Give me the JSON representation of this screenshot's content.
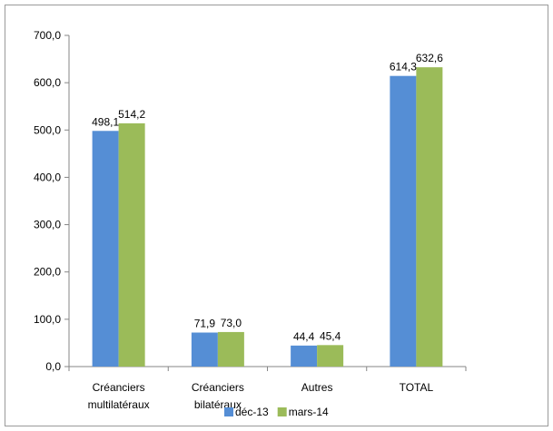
{
  "chart_data": {
    "type": "bar",
    "categories": [
      [
        "Créanciers",
        "multilatéraux"
      ],
      [
        "Créanciers",
        "bilatéraux"
      ],
      [
        "Autres"
      ],
      [
        "TOTAL"
      ]
    ],
    "series": [
      {
        "name": "déc-13",
        "color": "#558ED5",
        "values": [
          498.1,
          71.9,
          44.4,
          614.3
        ],
        "labels": [
          "498,1",
          "71,9",
          "44,4",
          "614,3"
        ]
      },
      {
        "name": "mars-14",
        "color": "#9BBB59",
        "values": [
          514.2,
          73.0,
          45.4,
          632.6
        ],
        "labels": [
          "514,2",
          "73,0",
          "45,4",
          "632,6"
        ]
      }
    ],
    "ylim": [
      0,
      700
    ],
    "yticks": [
      "0,0",
      "100,0",
      "200,0",
      "300,0",
      "400,0",
      "500,0",
      "600,0",
      "700,0"
    ],
    "grid": false,
    "legend": "bottom"
  }
}
